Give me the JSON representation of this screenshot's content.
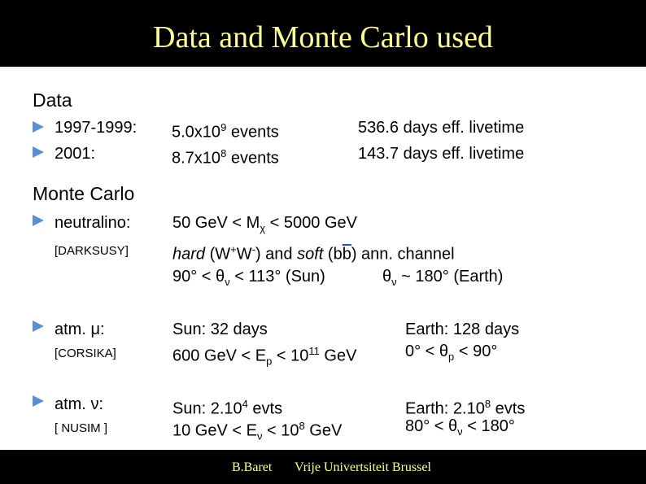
{
  "header": {
    "title": "Data and Monte Carlo used"
  },
  "data_section": {
    "heading": "Data",
    "rows": [
      {
        "period": "1997-1999:",
        "events": [
          {
            "t": "5.0x10"
          },
          {
            "t": "9",
            "sup": true
          },
          {
            "t": " events"
          }
        ],
        "livetime": "536.6 days eff. livetime"
      },
      {
        "period": "2001:",
        "events": [
          {
            "t": "8.7x10"
          },
          {
            "t": "8",
            "sup": true
          },
          {
            "t": " events"
          }
        ],
        "livetime": "143.7 days eff. livetime"
      }
    ]
  },
  "mc_section": {
    "heading": "Monte Carlo",
    "items": [
      {
        "name": "neutralino:",
        "generator": "[DARKSUSY]",
        "lines": [
          [
            {
              "t": "50 GeV < M"
            },
            {
              "t": "χ",
              "sub": true
            },
            {
              "t": " < 5000 GeV"
            }
          ],
          [
            {
              "t": "hard",
              "i": true
            },
            {
              "t": " (W"
            },
            {
              "t": "+",
              "sup": true
            },
            {
              "t": "W"
            },
            {
              "t": "-",
              "sup": true
            },
            {
              "t": ") and "
            },
            {
              "t": "soft",
              "i": true
            },
            {
              "t": " (b"
            },
            {
              "t": "b",
              "over": true
            },
            {
              "t": ") ann. channel"
            }
          ],
          [
            {
              "t": "90° < θ"
            },
            {
              "t": "ν",
              "sub": true
            },
            {
              "t": " < 113° (Sun)"
            }
          ]
        ],
        "right": [
          [
            {
              "t": "θ"
            },
            {
              "t": "ν",
              "sub": true
            },
            {
              "t": " ~ 180° (Earth)"
            }
          ]
        ]
      },
      {
        "name": "atm. μ:",
        "generator": "[CORSIKA]",
        "lines": [
          [
            {
              "t": "Sun: 32 days"
            }
          ],
          [
            {
              "t": "600 GeV < E"
            },
            {
              "t": "p",
              "sub": true
            },
            {
              "t": " < 10"
            },
            {
              "t": "11",
              "sup": true
            },
            {
              "t": " GeV"
            }
          ]
        ],
        "right": [
          [
            {
              "t": "Earth: 128 days"
            }
          ],
          [
            {
              "t": "0° < θ"
            },
            {
              "t": "p",
              "sub": true
            },
            {
              "t": " < 90°"
            }
          ]
        ]
      },
      {
        "name": "atm. ν:",
        "generator": "[ NUSIM ]",
        "lines": [
          [
            {
              "t": "Sun: 2.10"
            },
            {
              "t": "4",
              "sup": true
            },
            {
              "t": " evts"
            }
          ],
          [
            {
              "t": "10 GeV < E"
            },
            {
              "t": "ν",
              "sub": true
            },
            {
              "t": " < 10"
            },
            {
              "t": "8",
              "sup": true
            },
            {
              "t": " GeV"
            }
          ]
        ],
        "right": [
          [
            {
              "t": "Earth: 2.10"
            },
            {
              "t": "8",
              "sup": true
            },
            {
              "t": " evts"
            }
          ],
          [
            {
              "t": "80° < θ"
            },
            {
              "t": "ν",
              "sub": true
            },
            {
              "t": " < 180°"
            }
          ]
        ]
      }
    ]
  },
  "footer": {
    "author": "B.Baret",
    "institution": "Vrije Univertsiteit Brussel"
  }
}
